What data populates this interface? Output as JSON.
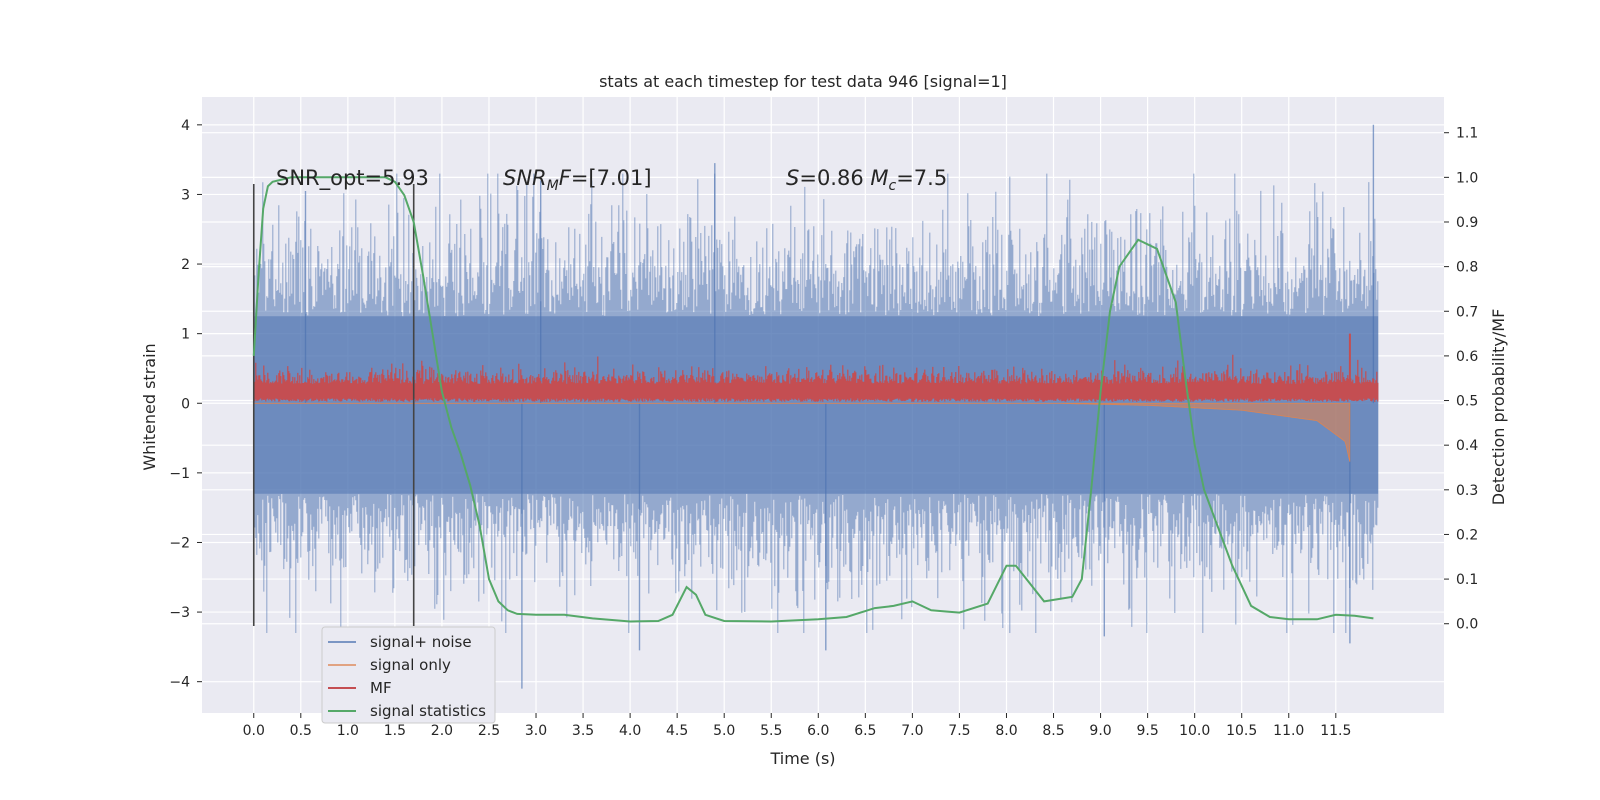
{
  "chart_data": {
    "type": "line",
    "title": "stats at each timestep for test data 946 [signal=1]",
    "xlabel": "Time (s)",
    "ylabel": "Whitened strain",
    "y2label": "Detection probability/MF",
    "xlim": [
      -0.55,
      12.65
    ],
    "ylim": [
      -4.45,
      4.4
    ],
    "y2lim": [
      -0.2,
      1.18
    ],
    "x_ticks": [
      0.0,
      0.5,
      1.0,
      1.5,
      2.0,
      2.5,
      3.0,
      3.5,
      4.0,
      4.5,
      5.0,
      5.5,
      6.0,
      6.5,
      7.0,
      7.5,
      8.0,
      8.5,
      9.0,
      9.5,
      10.0,
      10.5,
      11.0,
      11.5
    ],
    "x_tick_labels": [
      "0.0",
      "0.5",
      "1.0",
      "1.5",
      "2.0",
      "2.5",
      "3.0",
      "3.5",
      "4.0",
      "4.5",
      "5.0",
      "5.5",
      "6.0",
      "6.5",
      "7.0",
      "7.5",
      "8.0",
      "8.5",
      "9.0",
      "9.5",
      "10.0",
      "10.5",
      "11.0",
      "11.5"
    ],
    "y_ticks": [
      -4,
      -3,
      -2,
      -1,
      0,
      1,
      2,
      3,
      4
    ],
    "y_tick_labels": [
      "−4",
      "−3",
      "−2",
      "−1",
      "0",
      "1",
      "2",
      "3",
      "4"
    ],
    "y2_ticks": [
      0.0,
      0.1,
      0.2,
      0.3,
      0.4,
      0.5,
      0.6,
      0.7,
      0.8,
      0.9,
      1.0,
      1.1
    ],
    "y2_tick_labels": [
      "0.0",
      "0.1",
      "0.2",
      "0.3",
      "0.4",
      "0.5",
      "0.6",
      "0.7",
      "0.8",
      "0.9",
      "1.0",
      "1.1"
    ],
    "grid": true,
    "legend_position": "lower-left",
    "annotations": [
      {
        "text": "SNR_opt=5.93",
        "x": 0.22,
        "y": 3.2
      },
      {
        "text": "SNR_MF=[7.01]",
        "x": 2.6,
        "y": 3.2
      },
      {
        "text": "S=0.86   M_c=7.5",
        "x": 5.6,
        "y": 3.2
      }
    ],
    "vertical_markers": [
      0.0,
      1.7
    ],
    "series": [
      {
        "name": "signal+ noise",
        "color": "#4c72b0",
        "kind": "noise",
        "x_range": [
          0.0,
          11.95
        ],
        "band_core": [
          -1.3,
          1.25
        ],
        "peak_range": [
          -3.5,
          4.0
        ],
        "points": [
          [
            0.0,
            2.5
          ],
          [
            0.55,
            3.05
          ],
          [
            3.05,
            3.2
          ],
          [
            4.9,
            3.45
          ],
          [
            11.9,
            4.0
          ],
          [
            2.85,
            -4.1
          ],
          [
            4.1,
            -3.55
          ],
          [
            6.08,
            -3.55
          ],
          [
            9.04,
            -3.35
          ],
          [
            11.65,
            -3.45
          ]
        ]
      },
      {
        "name": "signal only",
        "color": "#dd8452",
        "kind": "chirp",
        "x_range": [
          0.0,
          11.65
        ],
        "points": [
          [
            8.5,
            0.0
          ],
          [
            9.5,
            -0.03
          ],
          [
            10.5,
            -0.1
          ],
          [
            11.3,
            -0.25
          ],
          [
            11.6,
            -0.55
          ],
          [
            11.65,
            -0.85
          ]
        ]
      },
      {
        "name": "MF",
        "color": "#c44e52",
        "kind": "mf",
        "x_range": [
          0.0,
          11.95
        ],
        "points": [
          [
            0.0,
            0.25
          ],
          [
            3.0,
            0.25
          ],
          [
            6.0,
            0.25
          ],
          [
            9.0,
            0.25
          ],
          [
            11.6,
            0.3
          ],
          [
            11.65,
            1.0
          ],
          [
            11.7,
            0.25
          ],
          [
            11.95,
            0.25
          ]
        ]
      },
      {
        "name": "signal statistics",
        "color": "#55a868",
        "kind": "line",
        "axis": "right",
        "points": [
          [
            0.0,
            0.6
          ],
          [
            0.05,
            0.78
          ],
          [
            0.1,
            0.93
          ],
          [
            0.15,
            0.98
          ],
          [
            0.2,
            0.99
          ],
          [
            0.4,
            1.0
          ],
          [
            1.0,
            1.0
          ],
          [
            1.4,
            1.0
          ],
          [
            1.5,
            0.99
          ],
          [
            1.6,
            0.96
          ],
          [
            1.7,
            0.9
          ],
          [
            1.8,
            0.78
          ],
          [
            1.9,
            0.65
          ],
          [
            2.0,
            0.52
          ],
          [
            2.1,
            0.44
          ],
          [
            2.2,
            0.38
          ],
          [
            2.3,
            0.31
          ],
          [
            2.4,
            0.22
          ],
          [
            2.5,
            0.1
          ],
          [
            2.6,
            0.05
          ],
          [
            2.7,
            0.03
          ],
          [
            2.8,
            0.022
          ],
          [
            3.0,
            0.02
          ],
          [
            3.3,
            0.02
          ],
          [
            3.6,
            0.012
          ],
          [
            4.0,
            0.005
          ],
          [
            4.3,
            0.006
          ],
          [
            4.45,
            0.02
          ],
          [
            4.6,
            0.082
          ],
          [
            4.7,
            0.065
          ],
          [
            4.8,
            0.02
          ],
          [
            5.0,
            0.006
          ],
          [
            5.5,
            0.005
          ],
          [
            6.0,
            0.01
          ],
          [
            6.3,
            0.015
          ],
          [
            6.6,
            0.035
          ],
          [
            6.8,
            0.04
          ],
          [
            7.0,
            0.05
          ],
          [
            7.2,
            0.03
          ],
          [
            7.5,
            0.025
          ],
          [
            7.8,
            0.045
          ],
          [
            8.0,
            0.13
          ],
          [
            8.1,
            0.13
          ],
          [
            8.4,
            0.05
          ],
          [
            8.7,
            0.06
          ],
          [
            8.8,
            0.1
          ],
          [
            8.9,
            0.3
          ],
          [
            9.0,
            0.52
          ],
          [
            9.1,
            0.7
          ],
          [
            9.2,
            0.8
          ],
          [
            9.4,
            0.86
          ],
          [
            9.6,
            0.84
          ],
          [
            9.8,
            0.72
          ],
          [
            9.9,
            0.55
          ],
          [
            10.0,
            0.4
          ],
          [
            10.1,
            0.3
          ],
          [
            10.4,
            0.13
          ],
          [
            10.6,
            0.04
          ],
          [
            10.8,
            0.015
          ],
          [
            11.0,
            0.01
          ],
          [
            11.3,
            0.01
          ],
          [
            11.5,
            0.02
          ],
          [
            11.7,
            0.018
          ],
          [
            11.9,
            0.012
          ]
        ]
      }
    ]
  }
}
